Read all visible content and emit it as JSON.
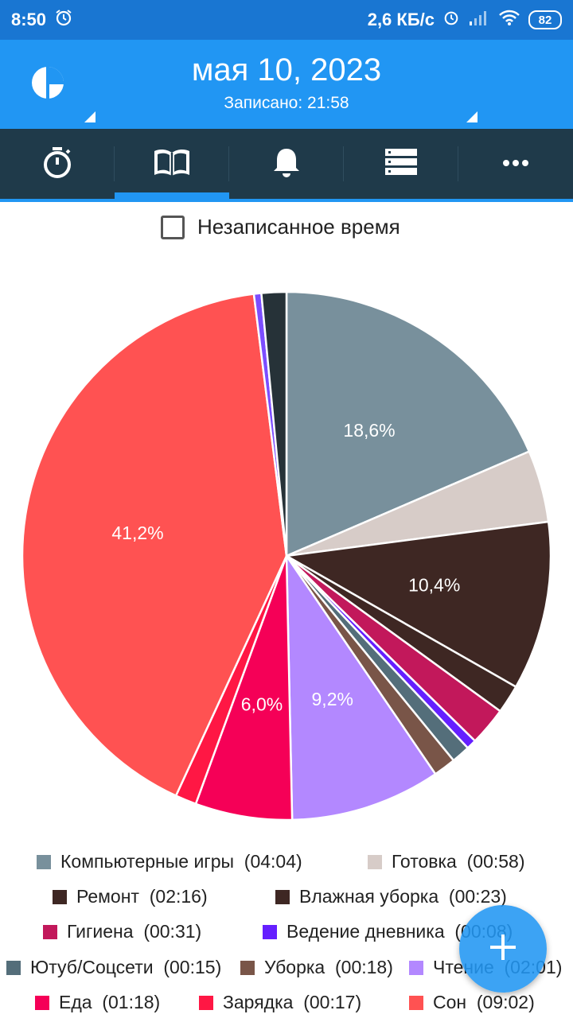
{
  "status_bar": {
    "time": "8:50",
    "net_speed": "2,6 КБ/с",
    "battery": "82",
    "icons": [
      "alarm-icon",
      "alarm-icon",
      "signal-icon",
      "wifi-icon",
      "battery-icon"
    ]
  },
  "header": {
    "date": "мая 10, 2023",
    "recorded": "Записано: 21:58"
  },
  "tabs": [
    {
      "icon": "stopwatch-icon",
      "active": false
    },
    {
      "icon": "book-icon",
      "active": true
    },
    {
      "icon": "bell-icon",
      "active": false
    },
    {
      "icon": "list-icon",
      "active": false
    },
    {
      "icon": "more-icon",
      "active": false
    }
  ],
  "unrecorded_label": "Незаписанное время",
  "chart_data": {
    "type": "pie",
    "slices": [
      {
        "label": "Компьютерные игры",
        "duration": "(04:04)",
        "minutes": 244,
        "color": "#78909c",
        "pct_label": "18,6%"
      },
      {
        "label": "Готовка",
        "duration": "(00:58)",
        "minutes": 58,
        "color": "#d7ccc8",
        "pct_label": ""
      },
      {
        "label": "Ремонт",
        "duration": "(02:16)",
        "minutes": 136,
        "color": "#3e2723",
        "pct_label": "10,4%"
      },
      {
        "label": "Влажная уборка",
        "duration": "(00:23)",
        "minutes": 23,
        "color": "#3e2723",
        "pct_label": ""
      },
      {
        "label": "Гигиена",
        "duration": "(00:31)",
        "minutes": 31,
        "color": "#c2185b",
        "pct_label": ""
      },
      {
        "label": "Ведение дневника",
        "duration": "(00:08)",
        "minutes": 8,
        "color": "#651fff",
        "pct_label": ""
      },
      {
        "label": "Ютуб/Соцсети",
        "duration": "(00:15)",
        "minutes": 15,
        "color": "#546e7a",
        "pct_label": ""
      },
      {
        "label": "Уборка",
        "duration": "(00:18)",
        "minutes": 18,
        "color": "#795548",
        "pct_label": ""
      },
      {
        "label": "Чтение",
        "duration": "(02:01)",
        "minutes": 121,
        "color": "#b388ff",
        "pct_label": "9,2%"
      },
      {
        "label": "Еда",
        "duration": "(01:18)",
        "minutes": 78,
        "color": "#f50057",
        "pct_label": "6,0%"
      },
      {
        "label": "Зарядка",
        "duration": "(00:17)",
        "minutes": 17,
        "color": "#ff1744",
        "pct_label": ""
      },
      {
        "label": "Сон",
        "duration": "(09:02)",
        "minutes": 542,
        "color": "#ff5252",
        "pct_label": "41,2%"
      },
      {
        "label": "",
        "duration": "",
        "minutes": 6,
        "color": "#7c4dff",
        "pct_label": ""
      },
      {
        "label": "",
        "duration": "",
        "minutes": 20,
        "color": "#263238",
        "pct_label": ""
      }
    ]
  },
  "fab_icon": "plus-icon"
}
